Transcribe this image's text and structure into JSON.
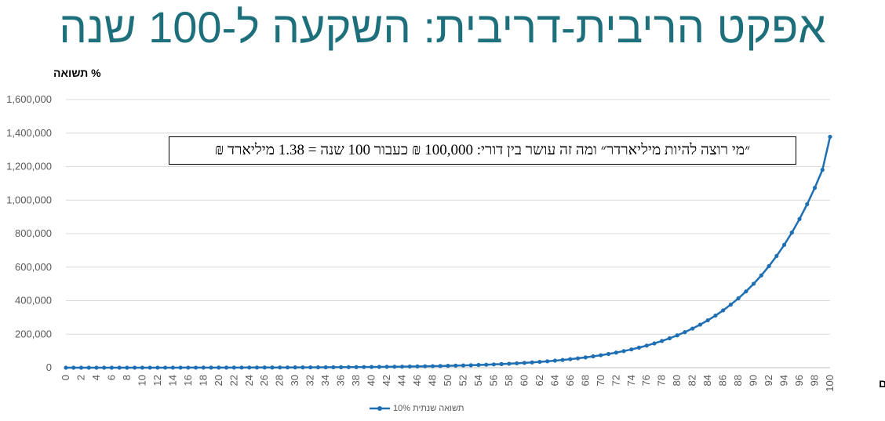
{
  "title": "אפקט הריבית-דריבית: השקעה ל-100 שנה",
  "annotation": "״מי רוצה להיות מיליארדר״ ומה זה עושר בין דורי: 100,000 ₪ כעבור 100 שנה = 1.38 מיליארד ₪",
  "chart_data": {
    "type": "line",
    "title": "אפקט הריבית-דריבית: השקעה ל-100 שנה",
    "xlabel": "שנים",
    "ylabel": "% תשואה",
    "ylim": [
      0,
      1600000
    ],
    "xlim": [
      0,
      100
    ],
    "yticks": [
      "0",
      "200,000",
      "400,000",
      "600,000",
      "800,000",
      "1,000,000",
      "1,200,000",
      "1,400,000",
      "1,600,000"
    ],
    "xticks": [
      "0",
      "2",
      "4",
      "6",
      "8",
      "10",
      "12",
      "14",
      "16",
      "18",
      "20",
      "22",
      "24",
      "26",
      "28",
      "30",
      "32",
      "34",
      "36",
      "38",
      "40",
      "42",
      "44",
      "46",
      "48",
      "50",
      "52",
      "54",
      "56",
      "58",
      "60",
      "62",
      "64",
      "66",
      "68",
      "70",
      "72",
      "74",
      "76",
      "78",
      "80",
      "82",
      "84",
      "86",
      "88",
      "90",
      "92",
      "94",
      "96",
      "98",
      "100"
    ],
    "grid": true,
    "legend": "bottom",
    "series": [
      {
        "name": "תשואה שנתית 10%",
        "color": "#1f6fb4",
        "x": [
          0,
          1,
          2,
          3,
          4,
          5,
          6,
          7,
          8,
          9,
          10,
          11,
          12,
          13,
          14,
          15,
          16,
          17,
          18,
          19,
          20,
          21,
          22,
          23,
          24,
          25,
          26,
          27,
          28,
          29,
          30,
          31,
          32,
          33,
          34,
          35,
          36,
          37,
          38,
          39,
          40,
          41,
          42,
          43,
          44,
          45,
          46,
          47,
          48,
          49,
          50,
          51,
          52,
          53,
          54,
          55,
          56,
          57,
          58,
          59,
          60,
          61,
          62,
          63,
          64,
          65,
          66,
          67,
          68,
          69,
          70,
          71,
          72,
          73,
          74,
          75,
          76,
          77,
          78,
          79,
          80,
          81,
          82,
          83,
          84,
          85,
          86,
          87,
          88,
          89,
          90,
          91,
          92,
          93,
          94,
          95,
          96,
          97,
          98,
          99,
          100
        ],
        "values": [
          0,
          10,
          21,
          33,
          46,
          61,
          77,
          95,
          114,
          136,
          159,
          185,
          214,
          245,
          280,
          318,
          359,
          405,
          456,
          512,
          573,
          640,
          714,
          795,
          885,
          983,
          1092,
          1211,
          1332,
          1463,
          1645,
          1809,
          1990,
          2189,
          2408,
          2649,
          2914,
          3205,
          3526,
          3879,
          4266,
          4693,
          5162,
          5678,
          6246,
          6871,
          7558,
          8313,
          9145,
          10059,
          11065,
          12171,
          13388,
          14727,
          16200,
          17820,
          19602,
          21562,
          23718,
          26090,
          28699,
          31569,
          34726,
          38198,
          42018,
          46220,
          50842,
          55926,
          61519,
          67671,
          74438,
          81882,
          90070,
          99077,
          108985,
          119883,
          131871,
          145058,
          159564,
          175521,
          193073,
          212380,
          233618,
          256980,
          282678,
          310946,
          342040,
          376244,
          413869,
          455256,
          500781,
          550859,
          605945,
          666540,
          733194,
          806513,
          887164,
          975881,
          1073469,
          1180816,
          1378061
        ]
      }
    ]
  }
}
